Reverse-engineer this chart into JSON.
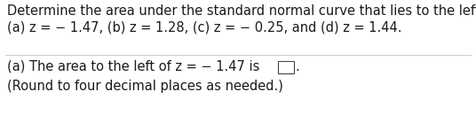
{
  "line1": "Determine the area under the standard normal curve that lies to the left of",
  "line2": "(a) z = − 1.47, (b) z = 1.28, (c) z = − 0.25, and (d) z = 1.44.",
  "line3": "(a) The area to the left of z = − 1.47 is",
  "line4": "(Round to four decimal places as needed.)",
  "bg_color": "#ffffff",
  "text_color": "#1a1a1a",
  "font_size": 10.5,
  "separator_color": "#cccccc",
  "box_edge_color": "#444444"
}
